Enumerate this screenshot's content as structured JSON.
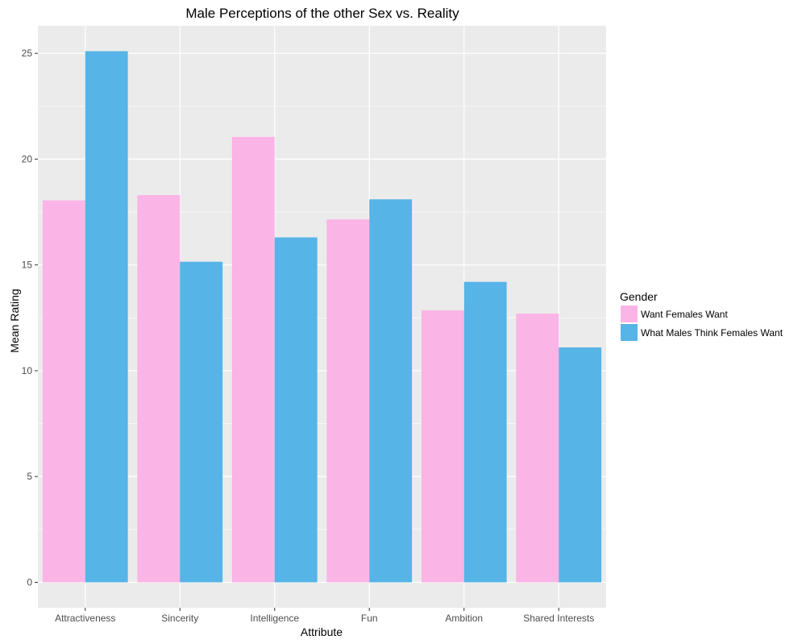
{
  "chart_data": {
    "type": "bar",
    "title": "Male Perceptions of the other Sex vs. Reality",
    "xlabel": "Attribute",
    "ylabel": "Mean Rating",
    "categories": [
      "Attractiveness",
      "Sincerity",
      "Intelligence",
      "Fun",
      "Ambition",
      "Shared Interests"
    ],
    "series": [
      {
        "name": "Want Females Want",
        "color": "#fbb4e6",
        "values": [
          18.05,
          18.3,
          21.05,
          17.15,
          12.85,
          12.7
        ]
      },
      {
        "name": "What Males Think Females Want",
        "color": "#56b4e6",
        "values": [
          25.1,
          15.15,
          16.3,
          18.1,
          14.2,
          11.1
        ]
      }
    ],
    "ylim": [
      -1.2,
      26.3
    ],
    "yticks": [
      0,
      5,
      10,
      15,
      20,
      25
    ],
    "grid": true,
    "legend": {
      "title": "Gender",
      "placement": "right"
    },
    "colors": {
      "panel_background": "#ebebeb",
      "grid_line": "#ffffff"
    }
  }
}
